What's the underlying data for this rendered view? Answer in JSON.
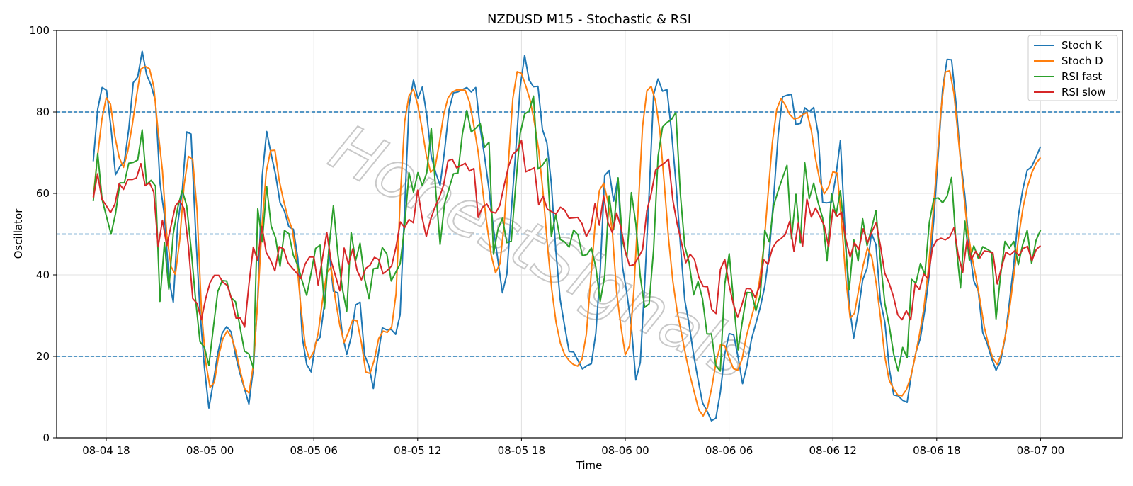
{
  "chart_data": {
    "type": "line",
    "title": "NZDUSD M15 - Stochastic & RSI",
    "xlabel": "Time",
    "ylabel": "Oscillator",
    "ylim": [
      0,
      100
    ],
    "yticks": [
      "0",
      "20",
      "40",
      "60",
      "80",
      "100"
    ],
    "xticks": [
      "08-04 18",
      "08-05 00",
      "08-05 06",
      "08-05 12",
      "08-05 18",
      "08-06 00",
      "08-06 06",
      "08-06 12",
      "08-06 18",
      "08-07 00"
    ],
    "x_start": "2025-08-04 17:15",
    "x_end": "2025-08-07 00:00",
    "x_interval": "15 min",
    "levels": [
      20,
      50,
      80
    ],
    "grid": true,
    "legend_position": "top-right",
    "watermark": "HonestSignals",
    "series": [
      {
        "name": "Stoch K",
        "color": "#1f77b4",
        "values": [
          67.9,
          80.7,
          86.0,
          85.3,
          76.0,
          64.6,
          66.6,
          67.8,
          75.9,
          87.2,
          88.6,
          94.9,
          89.2,
          86.6,
          82.6,
          62.6,
          54.6,
          39.1,
          33.3,
          52.5,
          60.5,
          75.1,
          74.6,
          51.1,
          31.1,
          17.2,
          7.3,
          13.6,
          20.7,
          25.7,
          27.3,
          26.0,
          20.3,
          15.8,
          12.1,
          8.3,
          17.1,
          34.1,
          64.3,
          75.2,
          69.6,
          64.6,
          57.7,
          55.6,
          51.8,
          51.2,
          44.1,
          24.6,
          18.0,
          16.2,
          23.3,
          24.7,
          33.0,
          46.3,
          36.0,
          35.6,
          25.3,
          20.5,
          24.7,
          32.6,
          33.3,
          20.4,
          17.5,
          12.1,
          19.9,
          27.0,
          26.5,
          26.6,
          25.4,
          30.2,
          55.8,
          81.5,
          87.8,
          83.3,
          86.1,
          79.2,
          69.1,
          65.1,
          62.0,
          70.5,
          80.5,
          84.7,
          84.9,
          85.5,
          86.0,
          84.9,
          86.0,
          76.0,
          69.0,
          60.9,
          51.3,
          43.5,
          35.6,
          40.2,
          55.7,
          70.3,
          86.2,
          93.9,
          87.8,
          86.2,
          86.3,
          75.7,
          72.4,
          62.4,
          46.2,
          33.9,
          27.4,
          21.2,
          21.1,
          19.0,
          16.9,
          17.7,
          18.2,
          25.7,
          40.9,
          64.4,
          65.6,
          58.1,
          63.8,
          42.1,
          35.4,
          27.4,
          14.2,
          18.5,
          37.7,
          60.0,
          84.3,
          88.1,
          85.1,
          85.5,
          75.5,
          62.9,
          47.7,
          33.8,
          27.8,
          20.4,
          14.3,
          8.6,
          6.6,
          4.2,
          4.8,
          11.1,
          20.6,
          25.6,
          25.3,
          19.8,
          13.3,
          17.8,
          24.2,
          28.1,
          32.1,
          37.2,
          45.3,
          59.2,
          74.3,
          83.7,
          84.1,
          84.3,
          76.9,
          77.2,
          81.0,
          80.1,
          81.1,
          74.6,
          57.8,
          57.7,
          57.9,
          64.3,
          73.0,
          51.6,
          32.6,
          24.5,
          30.8,
          38.7,
          41.7,
          50.2,
          47.4,
          33.6,
          28.4,
          16.9,
          10.5,
          10.3,
          9.2,
          8.7,
          15.8,
          21.0,
          24.5,
          31.4,
          40.2,
          53.5,
          69.8,
          85.8,
          92.9,
          92.8,
          82.1,
          68.5,
          59.4,
          46.5,
          38.5,
          36.0,
          25.8,
          23.2,
          19.5,
          16.6,
          18.7,
          24.4,
          33.2,
          42.7,
          54.4,
          60.9,
          65.7,
          66.5,
          68.9,
          71.5
        ]
      },
      {
        "name": "Stoch D",
        "color": "#ff7f0e",
        "values": [
          59.1,
          69.2,
          78.2,
          83.5,
          81.9,
          74.1,
          68.8,
          66.4,
          70.4,
          76.7,
          83.9,
          90.5,
          91.2,
          90.6,
          86.2,
          75.2,
          65.6,
          49.7,
          42.0,
          40.1,
          48.6,
          62.0,
          69.1,
          68.3,
          55.8,
          31.5,
          18.6,
          12.4,
          13.6,
          20.2,
          24.4,
          26.3,
          24.6,
          21.2,
          16.3,
          12.1,
          11.0,
          17.8,
          32.9,
          51.8,
          65.3,
          70.5,
          70.6,
          63.2,
          58.3,
          54.1,
          51.2,
          43.8,
          32.0,
          22.7,
          19.3,
          21.2,
          25.7,
          33.7,
          40.5,
          41.9,
          33.9,
          27.6,
          23.4,
          26.0,
          29.0,
          28.7,
          23.3,
          16.2,
          15.8,
          19.2,
          24.4,
          26.2,
          25.9,
          27.2,
          35.4,
          59.6,
          77.6,
          84.0,
          85.6,
          81.8,
          76.0,
          69.4,
          65.2,
          66.2,
          72.2,
          79.3,
          83.4,
          84.9,
          85.4,
          85.4,
          85.3,
          82.4,
          76.6,
          70.1,
          61.1,
          52.5,
          44.9,
          40.5,
          42.7,
          52.5,
          68.0,
          83.3,
          89.9,
          89.5,
          86.4,
          82.9,
          77.4,
          70.6,
          60.2,
          47.4,
          36.4,
          28.3,
          23.2,
          20.4,
          19.0,
          18.0,
          17.6,
          19.3,
          25.4,
          38.6,
          52.0,
          60.7,
          62.5,
          57.9,
          50.6,
          35.7,
          27.3,
          20.4,
          22.6,
          36.4,
          56.5,
          76.4,
          85.2,
          86.3,
          82.6,
          75.2,
          62.5,
          48.9,
          38.4,
          31.0,
          25.6,
          20.1,
          15.2,
          11.0,
          6.9,
          5.4,
          7.4,
          12.4,
          18.6,
          22.8,
          22.6,
          19.7,
          17.0,
          16.6,
          19.3,
          24.9,
          28.9,
          32.8,
          38.4,
          46.7,
          59.8,
          72.5,
          80.6,
          83.3,
          81.7,
          79.4,
          78.3,
          78.5,
          79.3,
          79.9,
          75.5,
          68.4,
          63.0,
          59.9,
          61.6,
          65.3,
          65.0,
          53.1,
          39.0,
          29.4,
          30.6,
          36.5,
          42.4,
          46.6,
          44.3,
          38.0,
          29.6,
          20.0,
          14.2,
          12.1,
          10.5,
          10.3,
          11.8,
          15.0,
          19.9,
          25.3,
          31.6,
          40.7,
          52.8,
          66.6,
          80.6,
          89.8,
          90.1,
          84.5,
          73.6,
          62.4,
          52.0,
          45.3,
          39.8,
          33.9,
          27.2,
          22.8,
          19.5,
          18.0,
          20.7,
          25.7,
          32.9,
          41.4,
          49.9,
          56.8,
          61.7,
          65.1,
          67.4,
          68.8
        ]
      },
      {
        "name": "RSI fast",
        "color": "#2ca02c",
        "values": [
          58.1,
          69.8,
          58.5,
          54.2,
          50.0,
          55.0,
          62.6,
          62.6,
          67.4,
          67.6,
          68.2,
          75.6,
          62.2,
          63.2,
          61.8,
          33.5,
          47.9,
          36.5,
          50.1,
          56.5,
          60.8,
          57.0,
          46.6,
          34.1,
          23.6,
          22.2,
          17.8,
          26.9,
          35.9,
          38.6,
          38.5,
          34.4,
          33.4,
          27.2,
          21.3,
          20.6,
          17.1,
          56.2,
          48.1,
          61.7,
          52.0,
          49.1,
          42.1,
          50.9,
          50.1,
          44.8,
          42.3,
          38.4,
          35.0,
          40.5,
          46.5,
          47.3,
          31.7,
          46.5,
          57.0,
          45.1,
          36.7,
          31.1,
          50.4,
          43.5,
          47.8,
          39.1,
          34.2,
          41.5,
          41.7,
          46.7,
          45.2,
          38.5,
          40.6,
          42.7,
          51.7,
          65.1,
          60.3,
          65.1,
          61.9,
          65.1,
          76.0,
          60.9,
          47.5,
          57.5,
          61.2,
          64.8,
          65.0,
          74.5,
          80.4,
          75.1,
          76.0,
          77.2,
          71.3,
          72.6,
          45.1,
          51.2,
          53.9,
          47.9,
          48.3,
          62.1,
          74.7,
          79.5,
          80.2,
          83.9,
          66.0,
          66.9,
          68.6,
          49.5,
          54.8,
          48.7,
          48.1,
          46.8,
          51.0,
          49.8,
          44.7,
          45.0,
          46.6,
          41.9,
          33.5,
          39.7,
          59.4,
          51.1,
          63.8,
          48.4,
          44.3,
          60.2,
          52.6,
          39.6,
          32.0,
          32.9,
          46.3,
          69.1,
          76.3,
          77.4,
          78.1,
          79.9,
          60.0,
          47.1,
          43.0,
          35.1,
          38.4,
          34.1,
          25.5,
          25.5,
          17.7,
          16.4,
          37.7,
          45.2,
          33.2,
          21.6,
          28.9,
          35.7,
          35.6,
          31.2,
          35.1,
          51.0,
          48.1,
          57.0,
          60.7,
          63.8,
          66.9,
          48.8,
          59.8,
          47.9,
          67.5,
          58.7,
          62.5,
          57.7,
          54.0,
          43.4,
          59.9,
          54.5,
          60.7,
          49.1,
          36.3,
          48.7,
          43.4,
          53.8,
          47.2,
          51.3,
          55.8,
          43.5,
          33.0,
          27.4,
          20.5,
          16.4,
          22.2,
          19.7,
          38.9,
          38.0,
          42.8,
          40.1,
          52.9,
          58.7,
          58.9,
          57.7,
          59.3,
          63.9,
          47.7,
          36.8,
          53.2,
          43.6,
          47.1,
          44.1,
          46.9,
          46.3,
          45.6,
          29.2,
          39.8,
          48.2,
          46.6,
          48.2,
          42.5,
          47.5,
          50.9,
          42.8,
          48.5,
          51.0
        ]
      },
      {
        "name": "RSI slow",
        "color": "#d62728",
        "values": [
          58.8,
          64.8,
          58.6,
          57.0,
          55.3,
          57.3,
          62.4,
          61.0,
          63.4,
          63.4,
          63.8,
          67.3,
          61.9,
          62.6,
          60.3,
          46.9,
          53.4,
          47.2,
          52.1,
          56.9,
          58.2,
          56.3,
          47.0,
          34.2,
          33.0,
          29.0,
          34.2,
          38.1,
          39.9,
          39.9,
          38.2,
          37.4,
          34.0,
          29.4,
          29.4,
          27.2,
          37.8,
          46.8,
          43.6,
          51.9,
          45.5,
          43.6,
          41.0,
          46.9,
          46.4,
          43.0,
          41.7,
          40.5,
          39.1,
          42.7,
          44.4,
          44.4,
          37.5,
          44.1,
          50.4,
          43.4,
          39.8,
          36.1,
          46.6,
          42.6,
          46.4,
          41.1,
          38.8,
          41.6,
          42.4,
          44.3,
          43.8,
          40.3,
          41.1,
          42.2,
          46.9,
          53.0,
          51.6,
          53.6,
          52.8,
          60.8,
          54.2,
          49.4,
          53.6,
          56.6,
          58.9,
          62.1,
          68.0,
          68.4,
          66.3,
          66.8,
          67.4,
          65.5,
          66.1,
          54.1,
          56.6,
          57.4,
          55.5,
          55.2,
          57.1,
          62.0,
          66.6,
          69.6,
          70.6,
          73.0,
          65.3,
          65.8,
          66.3,
          57.2,
          59.3,
          56.1,
          55.5,
          55.0,
          56.6,
          55.9,
          53.9,
          54.0,
          54.1,
          52.6,
          49.4,
          51.4,
          57.5,
          52.2,
          59.4,
          52.8,
          50.4,
          55.2,
          51.7,
          45.8,
          42.2,
          42.5,
          44.2,
          46.2,
          55.8,
          59.9,
          65.7,
          66.7,
          67.4,
          68.4,
          58.3,
          52.5,
          47.9,
          43.0,
          45.1,
          43.8,
          39.4,
          37.2,
          37.1,
          31.5,
          30.5,
          41.4,
          43.8,
          37.5,
          32.8,
          29.6,
          32.8,
          36.7,
          36.6,
          34.5,
          37.0,
          43.7,
          42.6,
          46.5,
          48.2,
          48.9,
          49.9,
          53.1,
          45.8,
          52.7,
          47.0,
          58.6,
          54.2,
          56.4,
          54.3,
          52.1,
          46.9,
          56.1,
          54.4,
          55.4,
          48.7,
          44.4,
          47.9,
          46.2,
          51.3,
          47.9,
          50.6,
          52.8,
          47.1,
          40.4,
          38.0,
          34.7,
          30.2,
          29.0,
          31.2,
          29.0,
          37.8,
          36.4,
          40.2,
          39.1,
          46.6,
          48.5,
          49.0,
          48.6,
          49.3,
          51.6,
          44.8,
          40.6,
          48.6,
          43.8,
          45.8,
          44.2,
          45.9,
          45.7,
          45.4,
          37.8,
          41.9,
          45.6,
          44.9,
          45.9,
          44.8,
          46.5,
          47.0,
          43.5,
          46.2,
          47.2
        ]
      }
    ]
  }
}
